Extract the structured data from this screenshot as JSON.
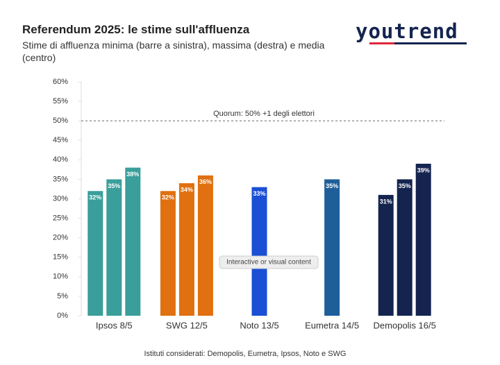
{
  "chart_data": {
    "type": "grouped_bar",
    "title": "Referendum 2025: le stime sull'affluenza",
    "subtitle": "Stime di affluenza minima (barre a sinistra), massima (destra) e media (centro)",
    "logo": "youtrend",
    "groups": [
      {
        "name": "Ipsos 8/5",
        "color": "#3a9e9a",
        "values": [
          32,
          35,
          38
        ],
        "value_labels": [
          "32%",
          "35%",
          "38%"
        ]
      },
      {
        "name": "SWG 12/5",
        "color": "#e07010",
        "values": [
          32,
          34,
          36
        ],
        "value_labels": [
          "32%",
          "34%",
          "36%"
        ]
      },
      {
        "name": "Noto 13/5",
        "color": "#1a4fd6",
        "values": [
          33
        ],
        "value_labels": [
          "33%"
        ]
      },
      {
        "name": "Eumetra 14/5",
        "color": "#1f5f99",
        "values": [
          35
        ],
        "value_labels": [
          "35%"
        ]
      },
      {
        "name": "Demopolis 16/5",
        "color": "#14244f",
        "values": [
          31,
          35,
          39
        ],
        "value_labels": [
          "31%",
          "35%",
          "39%"
        ]
      }
    ],
    "ylim": [
      0,
      60
    ],
    "yticks": [
      {
        "value": 0,
        "label": "0%"
      },
      {
        "value": 5,
        "label": "5%"
      },
      {
        "value": 10,
        "label": "10%"
      },
      {
        "value": 15,
        "label": "15%"
      },
      {
        "value": 20,
        "label": "20%"
      },
      {
        "value": 25,
        "label": "25%"
      },
      {
        "value": 30,
        "label": "30%"
      },
      {
        "value": 35,
        "label": "35%"
      },
      {
        "value": 40,
        "label": "40%"
      },
      {
        "value": 45,
        "label": "45%"
      },
      {
        "value": 50,
        "label": "50%"
      },
      {
        "value": 55,
        "label": "55%"
      },
      {
        "value": 60,
        "label": "60%"
      }
    ],
    "reference_line": {
      "value": 50,
      "label": "Quorum: 50% +1 degli elettori"
    },
    "overlay_label": "Interactive or visual content",
    "footnote": "Istituti considerati: Demopolis, Eumetra, Ipsos, Noto e SWG"
  }
}
